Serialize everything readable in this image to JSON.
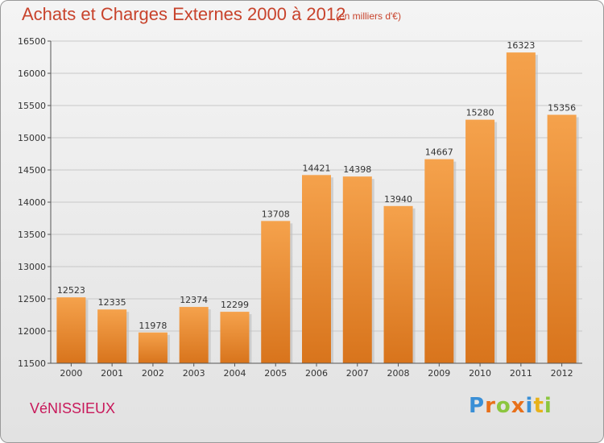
{
  "header": {
    "title": "Achats et Charges Externes 2000 à 2012",
    "subtitle": "(en milliers d'€)"
  },
  "footer": {
    "city": "VéNISSIEUX",
    "brand": "Proxiti",
    "brand_letters": [
      {
        "char": "P",
        "color": "#3a8fd6"
      },
      {
        "char": "r",
        "color": "#e8701a"
      },
      {
        "char": "o",
        "color": "#8cc63f"
      },
      {
        "char": "x",
        "color": "#e8701a"
      },
      {
        "char": "i",
        "color": "#3a8fd6"
      },
      {
        "char": "t",
        "color": "#e8b21a"
      },
      {
        "char": "i",
        "color": "#8cc63f"
      }
    ]
  },
  "chart_data": {
    "type": "bar",
    "categories": [
      "2000",
      "2001",
      "2002",
      "2003",
      "2004",
      "2005",
      "2006",
      "2007",
      "2008",
      "2009",
      "2010",
      "2011",
      "2012"
    ],
    "values": [
      12523,
      12335,
      11978,
      12374,
      12299,
      13708,
      14421,
      14398,
      13940,
      14667,
      15280,
      16323,
      15356
    ],
    "ylim": [
      11500,
      16500
    ],
    "yticks": [
      11500,
      12000,
      12500,
      13000,
      13500,
      14000,
      14500,
      15000,
      15500,
      16000,
      16500
    ],
    "grid": true,
    "bar_color_top": "#f5a24c",
    "bar_color_bottom": "#d8741c"
  }
}
